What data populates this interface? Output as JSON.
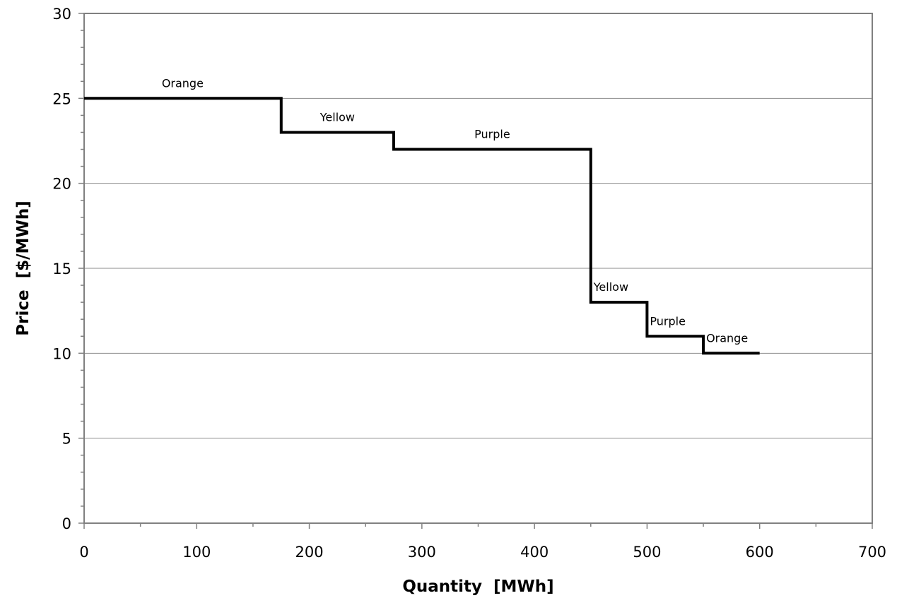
{
  "chart_data": {
    "type": "line",
    "title": "",
    "xlabel": "Quantity  [MWh]",
    "ylabel": "Price  [$/MWh]",
    "xlim": [
      0,
      700
    ],
    "ylim": [
      0,
      30
    ],
    "xticks": [
      0,
      100,
      200,
      300,
      400,
      500,
      600,
      700
    ],
    "yticks": [
      0,
      5,
      10,
      15,
      20,
      25,
      30
    ],
    "x_minor_step": 50,
    "y_minor_step": 1,
    "grid": "horizontal major lines",
    "legend": "none",
    "line_color": "#000000",
    "segments": [
      {
        "label": "Orange",
        "x_start": 0,
        "x_end": 175,
        "price": 25
      },
      {
        "label": "Yellow",
        "x_start": 175,
        "x_end": 275,
        "price": 23
      },
      {
        "label": "Purple",
        "x_start": 275,
        "x_end": 450,
        "price": 22
      },
      {
        "label": "Yellow",
        "x_start": 450,
        "x_end": 500,
        "price": 13
      },
      {
        "label": "Purple",
        "x_start": 500,
        "x_end": 550,
        "price": 11
      },
      {
        "label": "Orange",
        "x_start": 550,
        "x_end": 600,
        "price": 10
      }
    ],
    "series": [
      {
        "x": [
          0,
          175,
          175,
          275,
          275,
          450,
          450,
          500,
          500,
          550,
          550,
          600
        ],
        "y": [
          25,
          25,
          23,
          23,
          22,
          22,
          13,
          13,
          11,
          11,
          10,
          10
        ]
      }
    ]
  }
}
